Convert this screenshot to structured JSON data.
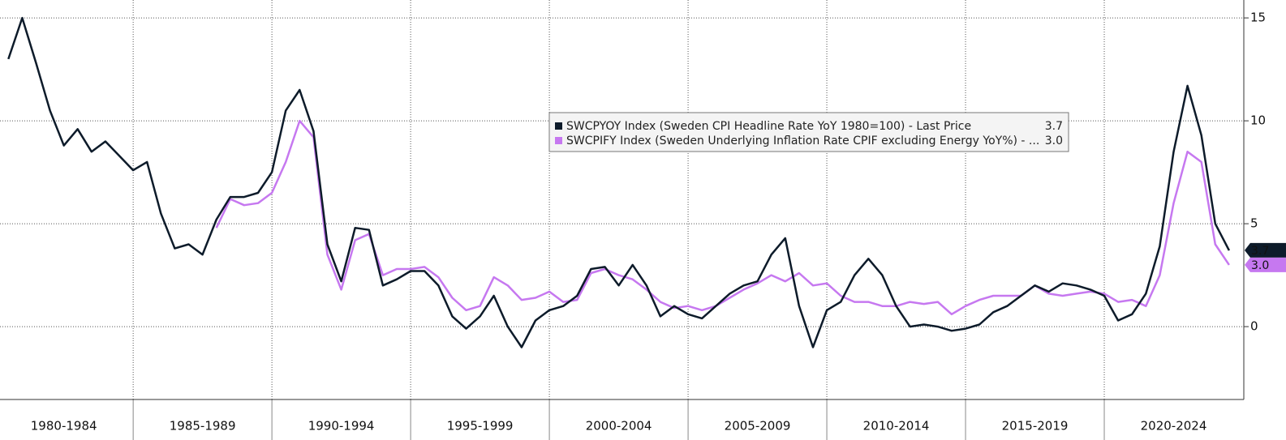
{
  "chart_data": {
    "type": "line",
    "categories": [
      "1980-1984",
      "1985-1989",
      "1990-1994",
      "1995-1999",
      "2000-2004",
      "2005-2009",
      "2010-2014",
      "2015-2019",
      "2020-2024"
    ],
    "x": [
      1980.5,
      1981,
      1981.5,
      1982,
      1982.5,
      1983,
      1983.5,
      1984,
      1984.5,
      1985,
      1985.5,
      1986,
      1986.5,
      1987,
      1987.5,
      1988,
      1988.5,
      1989,
      1989.5,
      1990,
      1990.5,
      1991,
      1991.5,
      1992,
      1992.5,
      1993,
      1993.5,
      1994,
      1994.5,
      1995,
      1995.5,
      1996,
      1996.5,
      1997,
      1997.5,
      1998,
      1998.5,
      1999,
      1999.5,
      2000,
      2000.5,
      2001,
      2001.5,
      2002,
      2002.5,
      2003,
      2003.5,
      2004,
      2004.5,
      2005,
      2005.5,
      2006,
      2006.5,
      2007,
      2007.5,
      2008,
      2008.5,
      2009,
      2009.5,
      2010,
      2010.5,
      2011,
      2011.5,
      2012,
      2012.5,
      2013,
      2013.5,
      2014,
      2014.5,
      2015,
      2015.5,
      2016,
      2016.5,
      2017,
      2017.5,
      2018,
      2018.5,
      2019,
      2019.5,
      2020,
      2020.5,
      2021,
      2021.5,
      2022,
      2022.5,
      2023,
      2023.5,
      2024,
      2024.5
    ],
    "series": [
      {
        "name": "SWCPYOY Index (Sweden CPI Headline Rate YoY 1980=100) - Last Price",
        "color": "#0d1b2a",
        "last_value_label": "3.7",
        "values": [
          13.0,
          15.0,
          12.8,
          10.5,
          8.8,
          9.6,
          8.5,
          9.0,
          8.3,
          7.6,
          8.0,
          5.5,
          3.8,
          4.0,
          3.5,
          5.2,
          6.3,
          6.3,
          6.5,
          7.5,
          10.5,
          11.5,
          9.5,
          4.0,
          2.2,
          4.8,
          4.7,
          2.0,
          2.3,
          2.7,
          2.7,
          2.0,
          0.5,
          -0.1,
          0.5,
          1.5,
          0.0,
          -1.0,
          0.3,
          0.8,
          1.0,
          1.5,
          2.8,
          2.9,
          2.0,
          3.0,
          2.0,
          0.5,
          1.0,
          0.6,
          0.4,
          1.0,
          1.6,
          2.0,
          2.2,
          3.5,
          4.3,
          1.0,
          -1.0,
          0.8,
          1.2,
          2.5,
          3.3,
          2.5,
          1.0,
          0.0,
          0.1,
          0.0,
          -0.2,
          -0.1,
          0.1,
          0.7,
          1.0,
          1.5,
          2.0,
          1.7,
          2.1,
          2.0,
          1.8,
          1.5,
          0.3,
          0.6,
          1.6,
          3.9,
          8.5,
          11.7,
          9.3,
          5.0,
          3.7
        ]
      },
      {
        "name": "SWCPIFY Index (Sweden Underlying Inflation Rate CPIF excluding Energy YoY%) - ...",
        "color": "#c678f0",
        "last_value_label": "3.0",
        "values": [
          null,
          null,
          null,
          null,
          null,
          null,
          null,
          null,
          null,
          null,
          null,
          null,
          null,
          null,
          null,
          4.8,
          6.2,
          5.9,
          6.0,
          6.5,
          8.0,
          10.0,
          9.2,
          3.5,
          1.8,
          4.2,
          4.5,
          2.5,
          2.8,
          2.8,
          2.9,
          2.4,
          1.4,
          0.8,
          1.0,
          2.4,
          2.0,
          1.3,
          1.4,
          1.7,
          1.2,
          1.3,
          2.6,
          2.8,
          2.5,
          2.3,
          1.8,
          1.2,
          0.9,
          1.0,
          0.8,
          1.0,
          1.4,
          1.8,
          2.1,
          2.5,
          2.2,
          2.6,
          2.0,
          2.1,
          1.5,
          1.2,
          1.2,
          1.0,
          1.0,
          1.2,
          1.1,
          1.2,
          0.6,
          1.0,
          1.3,
          1.5,
          1.5,
          1.5,
          2.0,
          1.6,
          1.5,
          1.6,
          1.7,
          1.6,
          1.2,
          1.3,
          1.0,
          2.5,
          6.0,
          8.5,
          8.0,
          4.0,
          3.0
        ]
      }
    ],
    "xlim": [
      1980.2,
      2025
    ],
    "xticks": [
      1985,
      1990,
      1995,
      2000,
      2005,
      2010,
      2015,
      2020
    ],
    "ylim": [
      -3.54,
      15.87
    ],
    "yticks": [
      0,
      5,
      10,
      15
    ],
    "grid": true
  }
}
